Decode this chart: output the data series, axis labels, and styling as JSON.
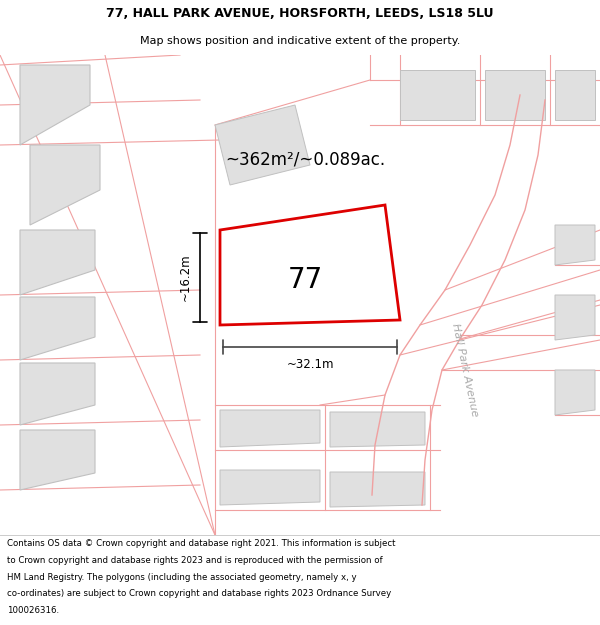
{
  "title_line1": "77, HALL PARK AVENUE, HORSFORTH, LEEDS, LS18 5LU",
  "title_line2": "Map shows position and indicative extent of the property.",
  "property_number": "77",
  "area_label": "~362m²/~0.089ac.",
  "width_label": "~32.1m",
  "height_label": "~16.2m",
  "road_label": "Hall Park Avenue",
  "plot_color": "#dd0000",
  "building_fill": "#e0e0e0",
  "building_edge": "#c0c0c0",
  "parcel_edge": "#f0a0a0",
  "road_edge": "#f0a0a0",
  "map_bg": "#ffffff",
  "title_bg": "#ffffff",
  "footer_bg": "#ffffff",
  "footer_lines": [
    "Contains OS data © Crown copyright and database right 2021. This information is subject",
    "to Crown copyright and database rights 2023 and is reproduced with the permission of",
    "HM Land Registry. The polygons (including the associated geometry, namely x, y",
    "co-ordinates) are subject to Crown copyright and database rights 2023 Ordnance Survey",
    "100026316."
  ]
}
